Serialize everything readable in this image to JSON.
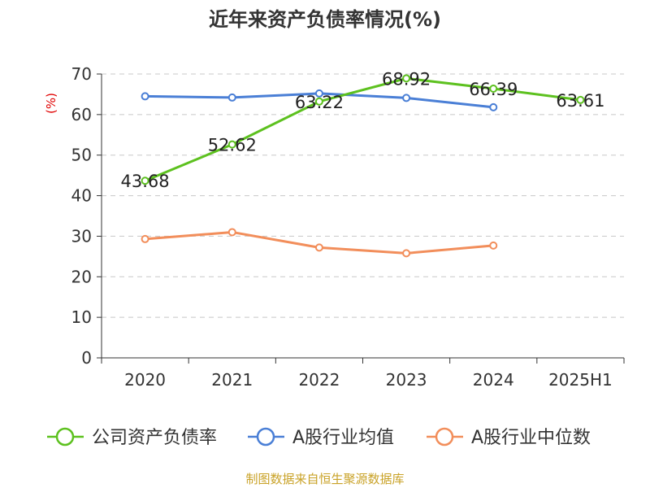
{
  "chart_data": {
    "type": "line",
    "title": "近年来资产负债率情况(%)",
    "ylabel": "(%)",
    "xlabel": "",
    "ylim": [
      0,
      70
    ],
    "yticks": [
      0,
      10,
      20,
      30,
      40,
      50,
      60,
      70
    ],
    "categories": [
      "2020",
      "2021",
      "2022",
      "2023",
      "2024",
      "2025H1"
    ],
    "grid": true,
    "legend_position": "bottom",
    "series": [
      {
        "name": "公司资产负债率",
        "color": "#5dc11f",
        "values": [
          43.68,
          52.62,
          63.22,
          68.92,
          66.39,
          63.61
        ],
        "labels": [
          "43.68",
          "52.62",
          "63.22",
          "68.92",
          "66.39",
          "63.61"
        ]
      },
      {
        "name": "A股行业均值",
        "color": "#4a7fd6",
        "values": [
          64.5,
          64.2,
          65.2,
          64.1,
          61.8,
          null
        ]
      },
      {
        "name": "A股行业中位数",
        "color": "#f28e5b",
        "values": [
          29.3,
          31.0,
          27.2,
          25.8,
          27.7,
          null
        ]
      }
    ]
  },
  "source_text": "制图数据来自恒生聚源数据库"
}
